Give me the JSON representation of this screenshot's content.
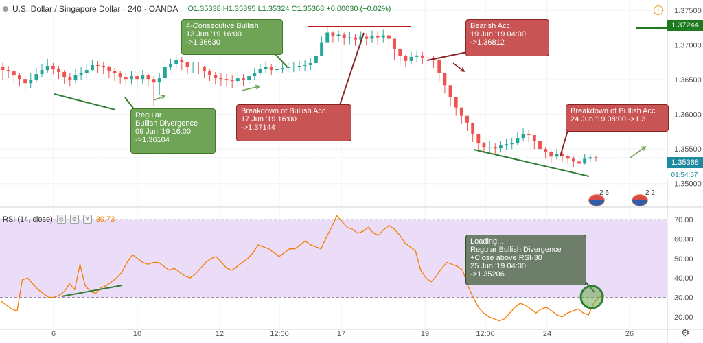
{
  "header": {
    "title": "U.S. Dollar / Singapore Dollar · 240 · OANDA",
    "ohlc": "O1.35338 H1.35395 L1.35324 C1.35368 +0.00030 (+0.02%)"
  },
  "rsi_header": {
    "label": "RSI (14, close)",
    "value": "30.73"
  },
  "price_tags": {
    "current": "1.35368",
    "countdown": "01:54:57",
    "level": "1.37244"
  },
  "flags": [
    "2 6",
    "2 2"
  ],
  "annotations": [
    {
      "id": "ann-4-consecutive-bullish",
      "text": "4-Consecutive Bullish\n13 Jun '19 16:00\n->1.36630"
    },
    {
      "id": "ann-regular-bullish-divergence",
      "text": "Regular\nBullish Divergence\n09 Jun '19 16:00\n->1.36104"
    },
    {
      "id": "ann-breakdown-bullish-acc-1",
      "text": "Breakdown of Bullish Acc.\n17 Jun '19 16:00\n->1.37144"
    },
    {
      "id": "ann-bearish-acc",
      "text": "Bearish Acc.\n19 Jun '19 04:00\n->1.36812"
    },
    {
      "id": "ann-breakdown-bullish-acc-2",
      "text": "Breakdown of Bullish Acc.\n24 Jun '19 08:00 ->1.3"
    },
    {
      "id": "ann-rsi-divergence",
      "text": "Loading...\nRegular Bullish Divergence\n+Close above RSI-30\n25 Jun '19 04:00\n->1.35206"
    }
  ],
  "colors": {
    "up": "#26a69a",
    "down": "#ef5350",
    "rsi_line": "#f57c00",
    "rsi_band": "#ebdcf7",
    "current_line": "#1e8aa0",
    "level_line": "#1e7a1e"
  },
  "chart_data": [
    {
      "type": "candlestick",
      "symbol": "USDSGD",
      "timeframe": "240",
      "x_ticks": [
        "6",
        "10",
        "12",
        "12:00",
        "17",
        "19",
        "12:00",
        "24",
        "26"
      ],
      "y_ticks": [
        1.375,
        1.37,
        1.365,
        1.36,
        1.355,
        1.35
      ],
      "ylim": [
        1.347,
        1.3765
      ],
      "closes": [
        1.3664,
        1.3662,
        1.3656,
        1.3651,
        1.3645,
        1.365,
        1.3658,
        1.3664,
        1.367,
        1.3666,
        1.3661,
        1.3654,
        1.365,
        1.3657,
        1.366,
        1.3664,
        1.3671,
        1.367,
        1.3668,
        1.3662,
        1.3659,
        1.3654,
        1.3651,
        1.3655,
        1.3651,
        1.3656,
        1.3651,
        1.3646,
        1.3652,
        1.3668,
        1.3672,
        1.3678,
        1.3675,
        1.3668,
        1.3669,
        1.3668,
        1.3662,
        1.3657,
        1.3653,
        1.3651,
        1.365,
        1.3648,
        1.3652,
        1.365,
        1.3655,
        1.366,
        1.3665,
        1.3668,
        1.3664,
        1.3666,
        1.3667,
        1.3668,
        1.3669,
        1.367,
        1.3671,
        1.3674,
        1.3684,
        1.3704,
        1.3718,
        1.3713,
        1.3715,
        1.371,
        1.3711,
        1.3708,
        1.3712,
        1.3709,
        1.3713,
        1.3711,
        1.3714,
        1.3709,
        1.3694,
        1.3684,
        1.3677,
        1.3683,
        1.3685,
        1.3682,
        1.3681,
        1.3678,
        1.366,
        1.3642,
        1.3625,
        1.361,
        1.3598,
        1.3588,
        1.3572,
        1.3558,
        1.3552,
        1.3553,
        1.3551,
        1.3555,
        1.3557,
        1.3558,
        1.3566,
        1.3572,
        1.357,
        1.3562,
        1.355,
        1.3546,
        1.3539,
        1.3543,
        1.354,
        1.3536,
        1.3532,
        1.3529,
        1.3536,
        1.3538,
        1.3537
      ],
      "lows": [
        1.365,
        1.3652,
        1.3646,
        1.364,
        1.3632,
        1.3638,
        1.3646,
        1.3654,
        1.366,
        1.3658,
        1.3651,
        1.3644,
        1.364,
        1.3645,
        1.365,
        1.3652,
        1.3662,
        1.366,
        1.3658,
        1.3652,
        1.3648,
        1.3644,
        1.364,
        1.3643,
        1.364,
        1.3644,
        1.364,
        1.3612,
        1.3628,
        1.3655,
        1.3664,
        1.3666,
        1.3664,
        1.3658,
        1.366,
        1.3658,
        1.3652,
        1.3648,
        1.3643,
        1.3641,
        1.364,
        1.3638,
        1.364,
        1.364,
        1.3644,
        1.365,
        1.3656,
        1.366,
        1.3656,
        1.3658,
        1.366,
        1.366,
        1.3661,
        1.3662,
        1.3663,
        1.3664,
        1.3672,
        1.369,
        1.3706,
        1.3704,
        1.3705,
        1.37,
        1.3701,
        1.3699,
        1.37,
        1.3699,
        1.3703,
        1.3701,
        1.3704,
        1.369,
        1.3678,
        1.3672,
        1.3668,
        1.3673,
        1.3676,
        1.3672,
        1.3671,
        1.3667,
        1.3648,
        1.363,
        1.3612,
        1.3598,
        1.3586,
        1.3576,
        1.356,
        1.3546,
        1.3544,
        1.3545,
        1.3542,
        1.3545,
        1.3549,
        1.355,
        1.3555,
        1.3562,
        1.356,
        1.355,
        1.354,
        1.3536,
        1.353,
        1.3535,
        1.3532,
        1.3528,
        1.3524,
        1.3521,
        1.3528,
        1.3532,
        1.3532
      ],
      "highs": [
        1.3674,
        1.367,
        1.3665,
        1.366,
        1.3655,
        1.3659,
        1.3667,
        1.3673,
        1.368,
        1.3674,
        1.367,
        1.3664,
        1.366,
        1.3666,
        1.3668,
        1.3673,
        1.3678,
        1.3677,
        1.3676,
        1.367,
        1.3667,
        1.3662,
        1.366,
        1.3663,
        1.366,
        1.3664,
        1.366,
        1.3655,
        1.366,
        1.3676,
        1.368,
        1.3686,
        1.3683,
        1.3676,
        1.3676,
        1.3676,
        1.367,
        1.3665,
        1.3661,
        1.3659,
        1.3658,
        1.3656,
        1.3659,
        1.3658,
        1.3662,
        1.3667,
        1.3672,
        1.3676,
        1.3672,
        1.3673,
        1.3674,
        1.3675,
        1.3676,
        1.3677,
        1.3678,
        1.3681,
        1.3692,
        1.3712,
        1.3726,
        1.372,
        1.3721,
        1.3718,
        1.3719,
        1.3716,
        1.372,
        1.3717,
        1.3721,
        1.372,
        1.3722,
        1.3716,
        1.3708,
        1.3693,
        1.3686,
        1.369,
        1.3692,
        1.369,
        1.3688,
        1.3685,
        1.368,
        1.3655,
        1.3637,
        1.362,
        1.3608,
        1.3596,
        1.3585,
        1.3566,
        1.356,
        1.3561,
        1.3558,
        1.3562,
        1.3565,
        1.3566,
        1.3575,
        1.358,
        1.3578,
        1.357,
        1.356,
        1.3553,
        1.3548,
        1.355,
        1.3547,
        1.3543,
        1.3539,
        1.3537,
        1.3543,
        1.3542,
        1.354
      ]
    },
    {
      "type": "line",
      "title": "RSI (14, close)",
      "y_ticks": [
        70,
        60,
        50,
        40,
        30,
        20
      ],
      "ylim": [
        15,
        75
      ],
      "bands": [
        30,
        70
      ],
      "values": [
        28,
        26,
        24,
        23,
        39,
        40,
        37,
        34,
        32,
        30,
        30,
        31,
        33,
        37,
        34,
        47,
        36,
        33,
        32,
        35,
        36,
        38,
        40,
        43,
        48,
        52,
        50,
        48,
        47,
        48,
        48,
        46,
        44,
        45,
        43,
        41,
        40,
        42,
        45,
        48,
        50,
        51,
        48,
        45,
        44,
        46,
        48,
        50,
        53,
        57,
        56,
        55,
        53,
        51,
        53,
        55,
        55,
        57,
        59,
        57,
        56,
        55,
        61,
        66,
        72,
        69,
        66,
        65,
        63,
        64,
        66,
        63,
        62,
        65,
        67,
        65,
        62,
        58,
        56,
        54,
        44,
        40,
        38,
        41,
        45,
        48,
        47,
        46,
        44,
        36,
        30,
        25,
        22,
        20,
        19,
        18,
        19,
        22,
        25,
        27,
        26,
        24,
        22,
        24,
        25,
        23,
        21,
        20,
        22,
        23,
        24,
        22,
        21,
        27,
        30,
        31
      ]
    }
  ]
}
